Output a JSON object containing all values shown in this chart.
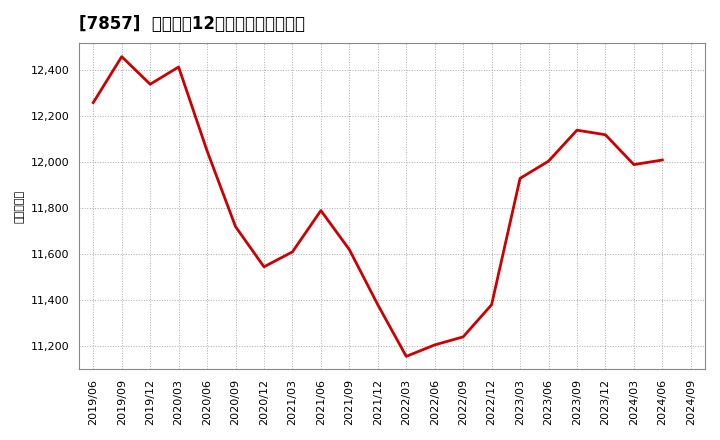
{
  "title": "[7857]  売上高の12か月移動合計の推移",
  "ylabel": "（百万円）",
  "line_color": "#cc0000",
  "background_color": "#ffffff",
  "plot_bg_color": "#ffffff",
  "grid_color": "#aaaaaa",
  "dates": [
    "2019/06",
    "2019/09",
    "2019/12",
    "2020/03",
    "2020/06",
    "2020/09",
    "2020/12",
    "2021/03",
    "2021/06",
    "2021/09",
    "2021/12",
    "2022/03",
    "2022/06",
    "2022/09",
    "2022/12",
    "2023/03",
    "2023/06",
    "2023/09",
    "2023/12",
    "2024/03",
    "2024/06",
    "2024/09"
  ],
  "values": [
    12260,
    12460,
    12340,
    12415,
    12050,
    11720,
    11545,
    11610,
    11790,
    11620,
    11380,
    11155,
    11205,
    11240,
    11380,
    11930,
    12005,
    12140,
    12120,
    11990,
    12010,
    null
  ],
  "yticks": [
    11200,
    11400,
    11600,
    11800,
    12000,
    12200,
    12400
  ],
  "ylim": [
    11100,
    12520
  ],
  "title_fontsize": 12,
  "tick_fontsize": 8,
  "ylabel_fontsize": 8,
  "line_width": 2.0
}
